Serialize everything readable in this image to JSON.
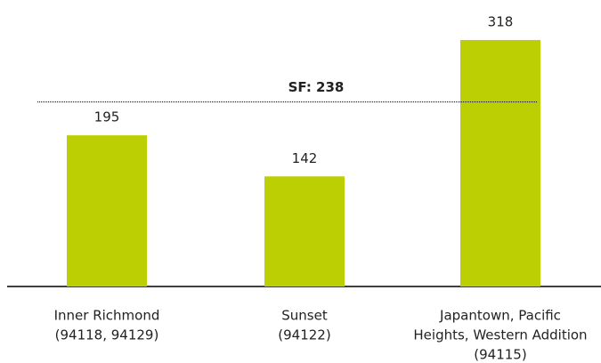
{
  "chart_data": {
    "type": "bar",
    "categories": [
      [
        "Inner Richmond",
        "(94118, 94129)"
      ],
      [
        "Sunset",
        "(94122)"
      ],
      [
        "Japantown, Pacific",
        "Heights, Western Addition",
        "(94115)"
      ]
    ],
    "values": [
      195,
      142,
      318
    ],
    "color": "#bccf02",
    "ylim": [
      0,
      365
    ],
    "reference_line": {
      "value": 238,
      "label": "SF: 238"
    }
  }
}
